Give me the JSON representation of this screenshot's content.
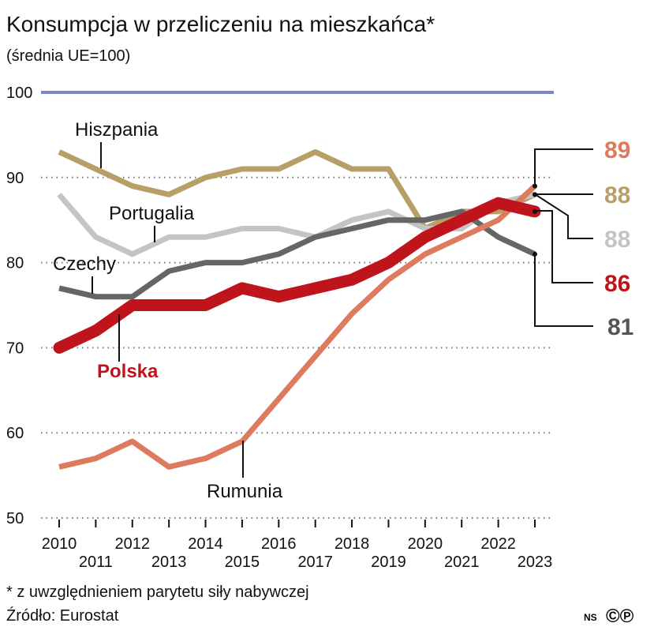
{
  "chart_data": {
    "type": "line",
    "title": "Konsumpcja w przeliczeniu na mieszkańca*",
    "subtitle": "(średnia UE=100)",
    "x": [
      2010,
      2011,
      2012,
      2013,
      2014,
      2015,
      2016,
      2017,
      2018,
      2019,
      2020,
      2021,
      2022,
      2023
    ],
    "x_tick_labels": [
      "2010",
      "2011",
      "2012",
      "2013",
      "2014",
      "2015",
      "2016",
      "2017",
      "2018",
      "2019",
      "2020",
      "2021",
      "2022",
      "2023"
    ],
    "ylim": [
      50,
      100
    ],
    "y_ticks": [
      "50",
      "60",
      "70",
      "80",
      "90",
      "100"
    ],
    "reference_line": {
      "value": 100,
      "label": "100",
      "color": "#7b86c6"
    },
    "grid": "dotted horizontal",
    "series": [
      {
        "name": "Hiszpania",
        "color": "#b89f68",
        "end_label": "88",
        "values": [
          93,
          91,
          89,
          88,
          90,
          91,
          91,
          93,
          91,
          91,
          84,
          86,
          86,
          88
        ]
      },
      {
        "name": "Portugalia",
        "color": "#c4c4c4",
        "end_label": "88",
        "values": [
          88,
          83,
          81,
          83,
          83,
          84,
          84,
          83,
          85,
          86,
          84,
          84,
          87,
          88
        ]
      },
      {
        "name": "Czechy",
        "color": "#666666",
        "end_label": "81",
        "values": [
          77,
          76,
          76,
          79,
          80,
          80,
          81,
          83,
          84,
          85,
          85,
          86,
          83,
          81
        ]
      },
      {
        "name": "Rumunia",
        "color": "#de7a5e",
        "end_label": "89",
        "values": [
          56,
          57,
          59,
          56,
          57,
          59,
          64,
          69,
          74,
          78,
          81,
          83,
          85,
          89
        ]
      },
      {
        "name": "Polska",
        "color": "#c0141c",
        "end_label": "86",
        "values": [
          70,
          72,
          75,
          75,
          75,
          77,
          76,
          77,
          78,
          80,
          83,
          85,
          87,
          86
        ]
      }
    ]
  },
  "footnote": "* z uwzględnieniem parytetu siły nabywczej",
  "source": "Źródło: Eurostat",
  "credit": "NS",
  "copyright_marks": "©℗"
}
